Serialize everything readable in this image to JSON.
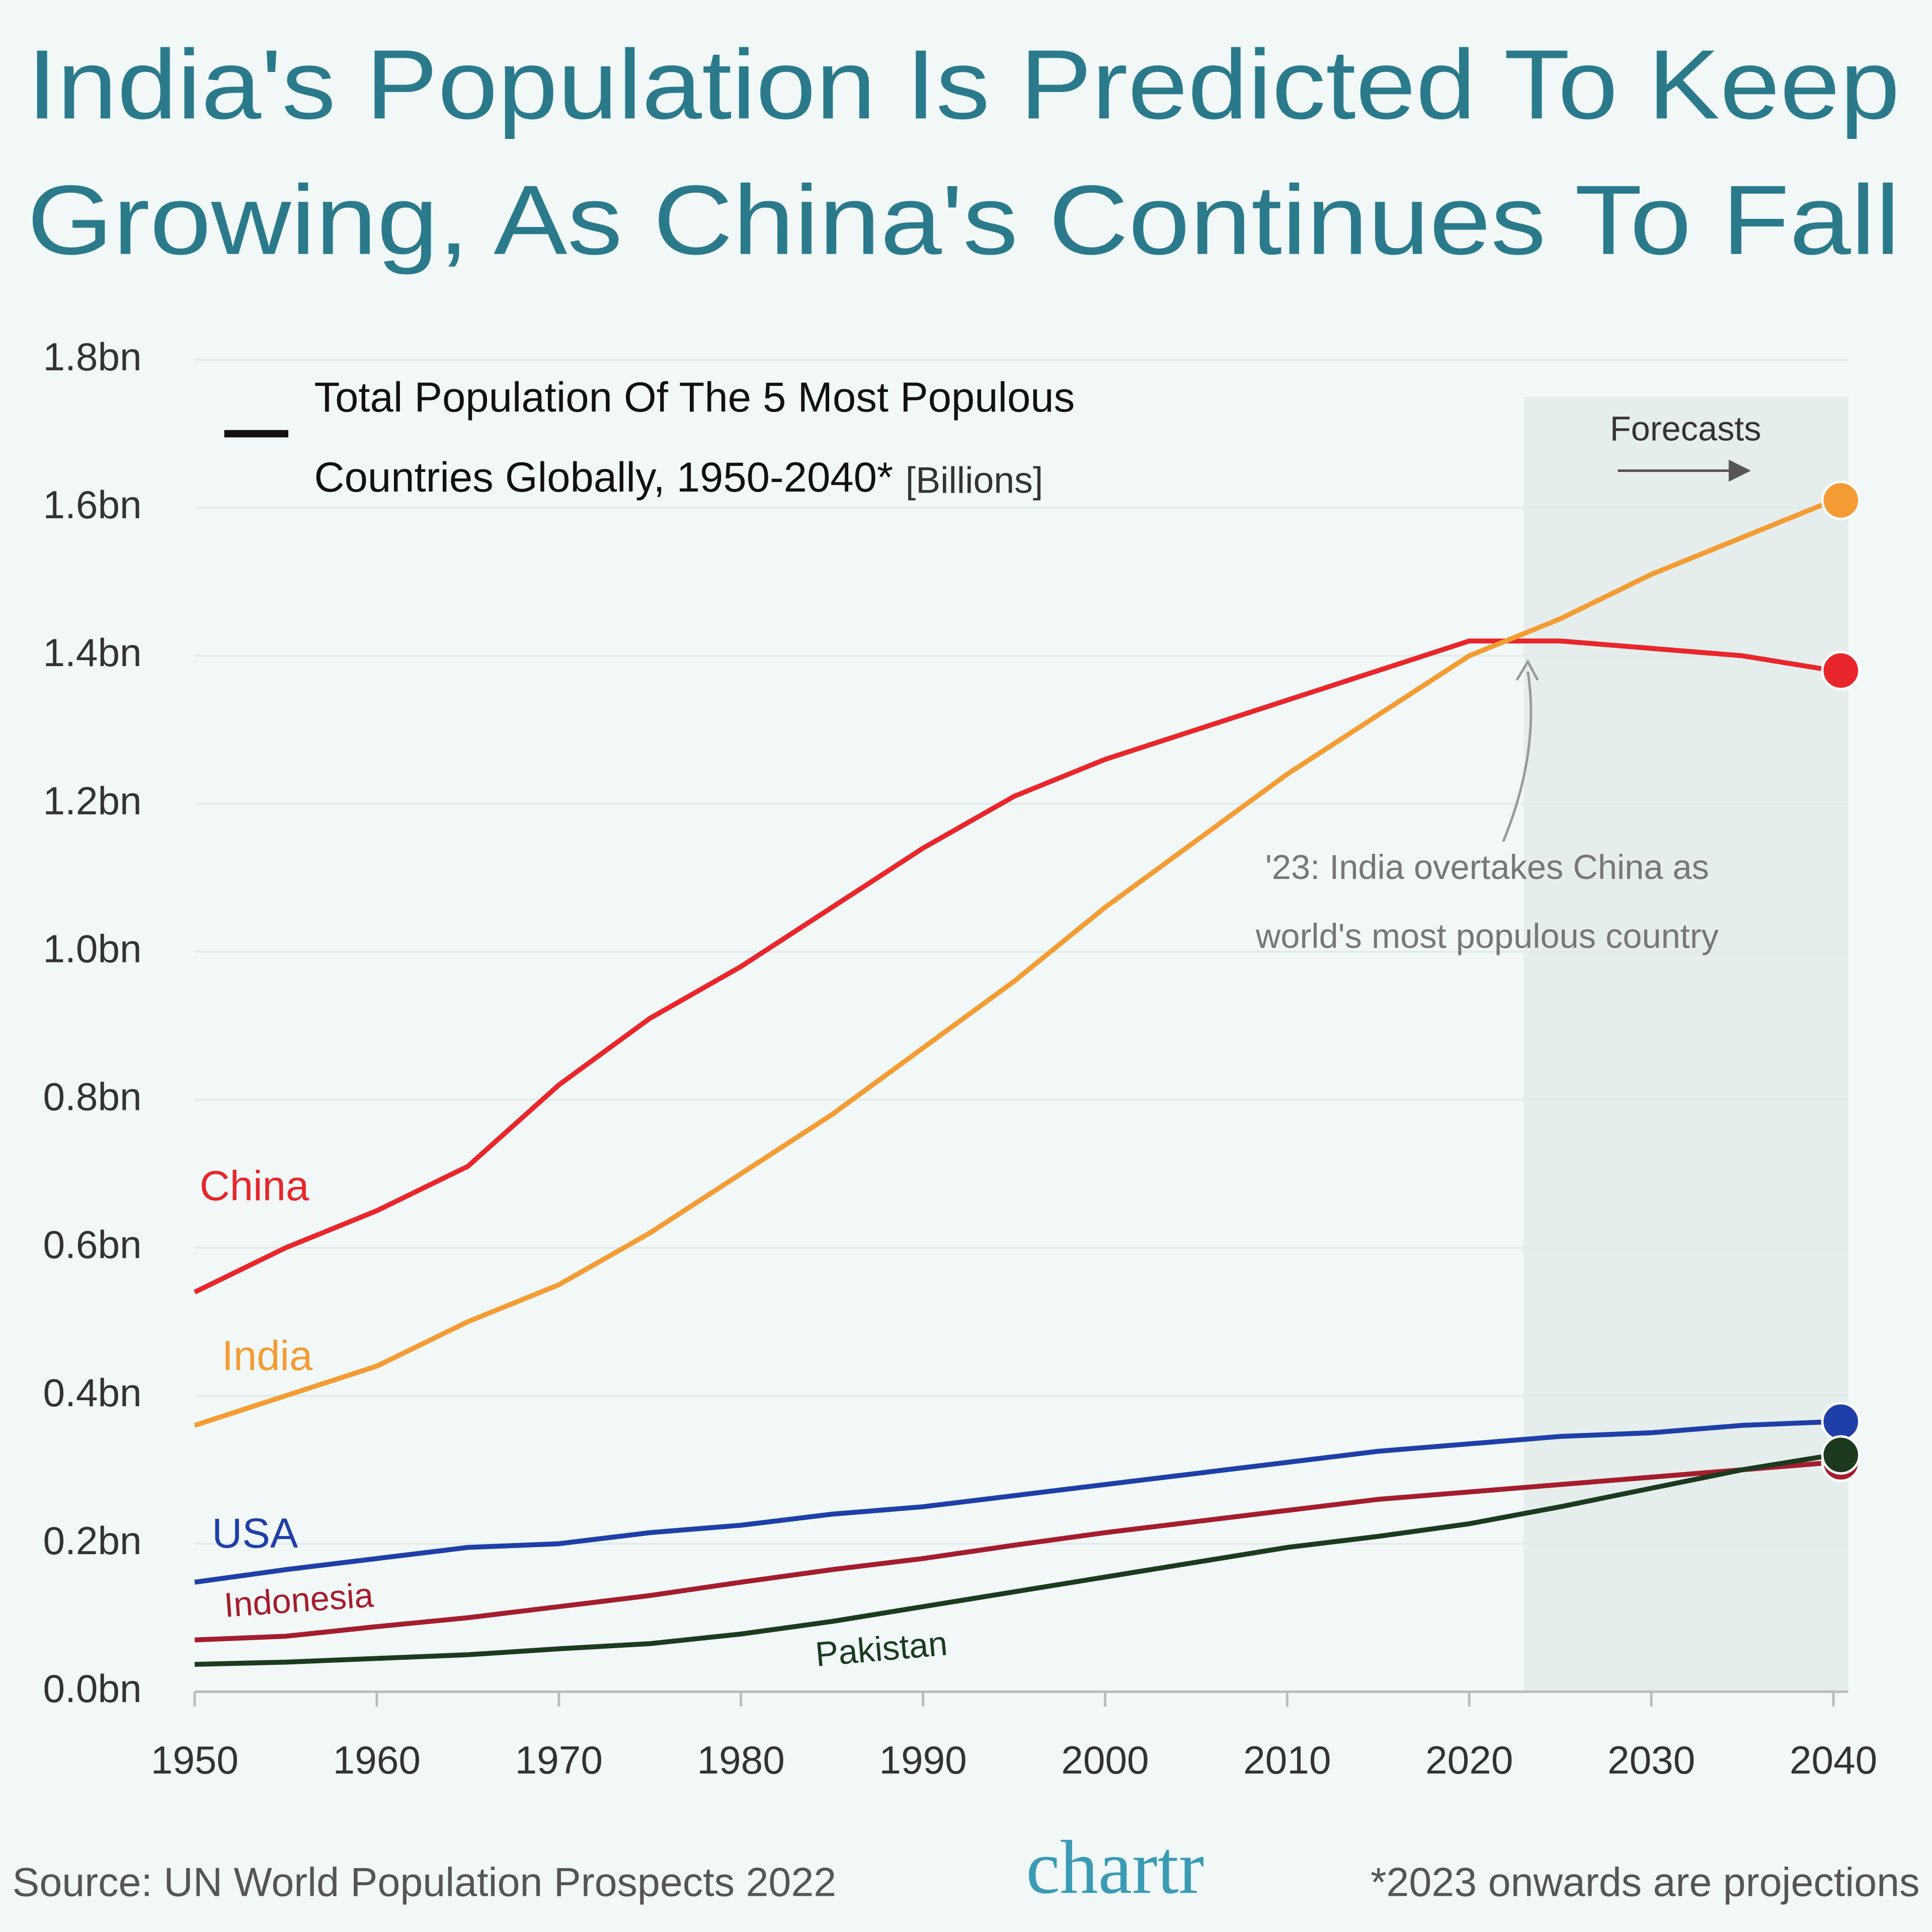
{
  "chart_data": {
    "type": "line",
    "title": [
      "India's Population Is Predicted To Keep",
      "Growing, As China's Continues To Fall"
    ],
    "legend_title": [
      "Total Population Of The 5 Most Populous",
      "Countries Globally, 1950-2040*"
    ],
    "unit": "[Billions]",
    "forecast_label": "Forecasts",
    "forecast_start": 2023,
    "annotation": [
      "'23: India overtakes China as",
      "world's most populous country"
    ],
    "source": "Source: UN World Population Prospects 2022",
    "brand": "chartr",
    "note": "*2023 onwards are projections",
    "x": [
      1950,
      1955,
      1960,
      1965,
      1970,
      1975,
      1980,
      1985,
      1990,
      1995,
      2000,
      2005,
      2010,
      2015,
      2020,
      2025,
      2030,
      2035,
      2040
    ],
    "series": [
      {
        "name": "China",
        "color": "#e8262b",
        "values": [
          0.54,
          0.6,
          0.65,
          0.71,
          0.82,
          0.91,
          0.98,
          1.06,
          1.14,
          1.21,
          1.26,
          1.3,
          1.34,
          1.38,
          1.42,
          1.42,
          1.41,
          1.4,
          1.38
        ]
      },
      {
        "name": "India",
        "color": "#f39c34",
        "values": [
          0.36,
          0.4,
          0.44,
          0.5,
          0.55,
          0.62,
          0.7,
          0.78,
          0.87,
          0.96,
          1.06,
          1.15,
          1.24,
          1.32,
          1.4,
          1.45,
          1.51,
          1.56,
          1.61
        ]
      },
      {
        "name": "USA",
        "color": "#1f3fa8",
        "values": [
          0.148,
          0.165,
          0.18,
          0.195,
          0.2,
          0.215,
          0.225,
          0.24,
          0.25,
          0.265,
          0.28,
          0.295,
          0.31,
          0.325,
          0.335,
          0.345,
          0.35,
          0.36,
          0.365
        ]
      },
      {
        "name": "Indonesia",
        "color": "#a51d2d",
        "values": [
          0.07,
          0.075,
          0.088,
          0.1,
          0.115,
          0.13,
          0.148,
          0.165,
          0.18,
          0.198,
          0.215,
          0.23,
          0.245,
          0.26,
          0.27,
          0.28,
          0.29,
          0.3,
          0.31
        ]
      },
      {
        "name": "Pakistan",
        "color": "#1c3a1f",
        "values": [
          0.037,
          0.04,
          0.045,
          0.05,
          0.058,
          0.065,
          0.078,
          0.095,
          0.115,
          0.135,
          0.155,
          0.175,
          0.195,
          0.21,
          0.227,
          0.25,
          0.275,
          0.3,
          0.32
        ]
      }
    ],
    "xlim": [
      1950,
      2040
    ],
    "xticks": [
      1950,
      1960,
      1970,
      1980,
      1990,
      2000,
      2010,
      2020,
      2030,
      2040
    ],
    "ylim": [
      0,
      1.8
    ],
    "yticks": [
      {
        "value": 0,
        "label": "0.0bn"
      },
      {
        "value": 0.2,
        "label": "0.2bn"
      },
      {
        "value": 0.4,
        "label": "0.4bn"
      },
      {
        "value": 0.6,
        "label": "0.6bn"
      },
      {
        "value": 0.8,
        "label": "0.8bn"
      },
      {
        "value": 1,
        "label": "1.0bn"
      },
      {
        "value": 1.2,
        "label": "1.2bn"
      },
      {
        "value": 1.4,
        "label": "1.4bn"
      },
      {
        "value": 1.6,
        "label": "1.6bn"
      },
      {
        "value": 1.8,
        "label": "1.8bn"
      }
    ],
    "grid": true
  }
}
